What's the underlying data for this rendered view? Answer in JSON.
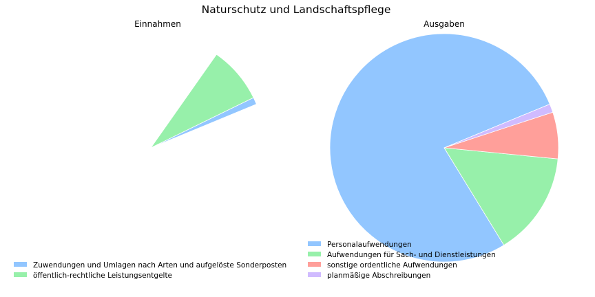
{
  "chart_data": {
    "title": "Naturschutz und Landschaftspflege",
    "charts": [
      {
        "type": "pie",
        "title": "Einnahmen",
        "legend": "bottom-left",
        "slices": [
          {
            "label": "Zuwendungen und Umlagen nach Arten und aufgelöste Sonderposten",
            "value": 1.0,
            "color": "#92c6ff"
          },
          {
            "label": "öffentlich-rechtliche Leistungsentgelte",
            "value": 8.0,
            "color": "#97f0aa"
          }
        ],
        "total_fraction": 0.09
      },
      {
        "type": "pie",
        "title": "Ausgaben",
        "legend": "bottom-left",
        "slices": [
          {
            "label": "Personalaufwendungen",
            "value": 77.5,
            "color": "#92c6ff"
          },
          {
            "label": "Aufwendungen für Sach- und Dienstleistungen",
            "value": 14.7,
            "color": "#97f0aa"
          },
          {
            "label": "sonstige ordentliche Aufwendungen",
            "value": 6.6,
            "color": "#ff9f9a"
          },
          {
            "label": "planmäßige Abschreibungen",
            "value": 1.2,
            "color": "#d0bbff"
          }
        ],
        "total_fraction": 1.0
      }
    ]
  }
}
